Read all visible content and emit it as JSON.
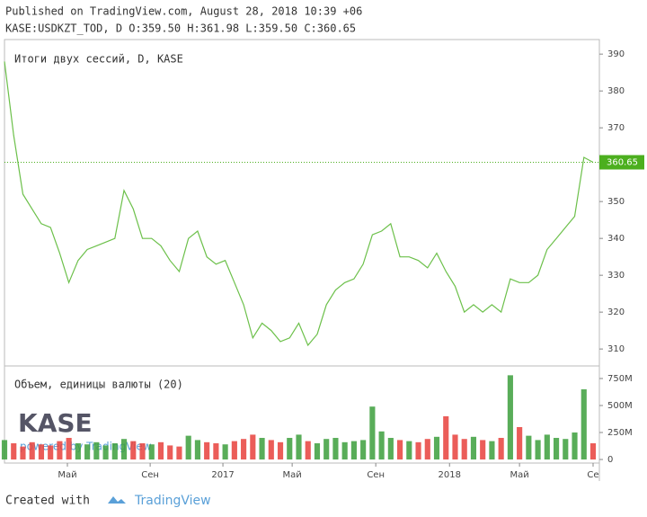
{
  "header": {
    "line1": "Published on TradingView.com, August 28, 2018 10:39 +06",
    "line2": "KASE:USDKZT_TOD, D O:359.50 H:361.98 L:359.50 C:360.65"
  },
  "watermark": {
    "logo": "KASE",
    "powered": "powered by TradingView"
  },
  "footer": {
    "created": "Created with",
    "brand": "TradingView"
  },
  "chart_data": [
    {
      "type": "line",
      "title": "Итоги двух сессий, D, KASE",
      "color": "#6cc04a",
      "values": [
        388,
        368,
        352,
        348,
        344,
        343,
        336,
        328,
        334,
        337,
        338,
        339,
        340,
        353,
        348,
        340,
        340,
        338,
        334,
        331,
        340,
        342,
        335,
        333,
        334,
        328,
        322,
        313,
        317,
        315,
        312,
        313,
        317,
        311,
        314,
        322,
        326,
        328,
        329,
        333,
        341,
        342,
        344,
        335,
        335,
        334,
        332,
        336,
        331,
        327,
        320,
        322,
        320,
        322,
        320,
        329,
        328,
        328,
        330,
        337,
        340,
        343,
        346,
        362,
        360.65
      ],
      "xlim": [
        0,
        64
      ],
      "ylim": [
        305.4,
        393.7
      ],
      "yticks": [
        310,
        320,
        330,
        340,
        350,
        360,
        370,
        380,
        390
      ],
      "last_value": 360.65,
      "last_color": "#4caf1e"
    },
    {
      "type": "bar",
      "title": "Объем, единицы валюты (20)",
      "up_color": "#3c9f3c",
      "down_color": "#e8413c",
      "values": [
        180000000,
        150000000,
        120000000,
        160000000,
        140000000,
        130000000,
        170000000,
        200000000,
        150000000,
        140000000,
        160000000,
        130000000,
        150000000,
        190000000,
        170000000,
        150000000,
        140000000,
        160000000,
        130000000,
        120000000,
        220000000,
        180000000,
        160000000,
        150000000,
        140000000,
        170000000,
        190000000,
        230000000,
        200000000,
        180000000,
        160000000,
        200000000,
        230000000,
        170000000,
        150000000,
        190000000,
        200000000,
        160000000,
        170000000,
        180000000,
        490000000,
        260000000,
        200000000,
        180000000,
        170000000,
        160000000,
        190000000,
        210000000,
        400000000,
        230000000,
        190000000,
        210000000,
        180000000,
        170000000,
        200000000,
        780000000,
        300000000,
        220000000,
        180000000,
        230000000,
        200000000,
        190000000,
        250000000,
        650000000,
        150000000
      ],
      "xlim": [
        0,
        64
      ],
      "ylim": [
        -33000000,
        858000000
      ],
      "yticks": [
        {
          "value": 0,
          "label": "0"
        },
        {
          "value": 250000000,
          "label": "250M"
        },
        {
          "value": 500000000,
          "label": "500M"
        },
        {
          "value": 750000000,
          "label": "750M"
        }
      ],
      "xticks": [
        {
          "value": 6.84,
          "label": "Май"
        },
        {
          "value": 15.84,
          "label": "Сен"
        },
        {
          "value": 23.75,
          "label": "2017"
        },
        {
          "value": 31.28,
          "label": "Май"
        },
        {
          "value": 40.37,
          "label": "Сен"
        },
        {
          "value": 48.39,
          "label": "2018"
        },
        {
          "value": 56,
          "label": "Май"
        },
        {
          "value": 64,
          "label": "Се"
        }
      ]
    }
  ]
}
